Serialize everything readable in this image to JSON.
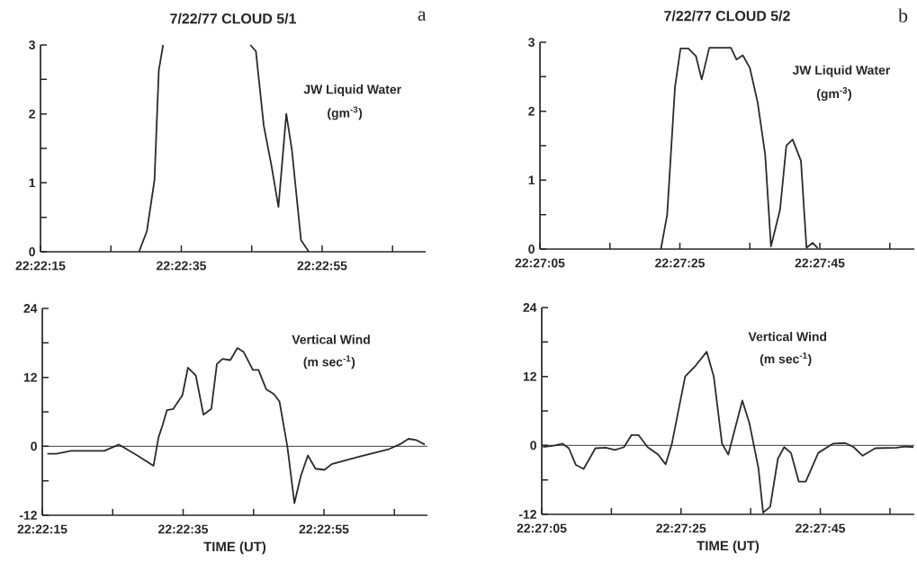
{
  "chart_data": [
    {
      "type": "line",
      "title": "7/22/77 CLOUD 5/1",
      "annotations": [
        "JW Liquid Water",
        "(gm$^{-3}$)",
        "a"
      ],
      "x": [
        22.37472,
        22.37503,
        22.37533,
        22.3755,
        22.37567,
        22.37722,
        22.37911,
        22.37933,
        22.37964,
        22.37994,
        22.38022,
        22.38053,
        22.38075,
        22.38111,
        22.38142
      ],
      "series": [
        {
          "color": "#2b2b2b",
          "values": [
            0,
            0.3,
            1.04,
            2.63,
            3,
            null,
            3,
            2.91,
            1.83,
            1.26,
            0.65,
            2.0,
            1.48,
            0.17,
            0
          ]
        }
      ],
      "xlim": [
        22.370833,
        22.386028
      ],
      "xticks": [
        {
          "value": 22.370833,
          "label": "22:22:15"
        },
        {
          "value": 22.373611,
          "label": null
        },
        {
          "value": 22.376389,
          "label": "22:22:35"
        },
        {
          "value": 22.379167,
          "label": null
        },
        {
          "value": 22.381944,
          "label": "22:22:55"
        },
        {
          "value": 22.384722,
          "label": null
        }
      ],
      "ylim": [
        0,
        3
      ],
      "yticks": [
        0,
        {
          "value": 0.5,
          "label": null
        },
        1,
        {
          "value": 1.5,
          "label": null
        },
        2,
        {
          "value": 2.5,
          "label": null
        },
        3
      ]
    },
    {
      "type": "line",
      "title": "7/22/77 CLOUD 5/2",
      "annotations": [
        "JW Liquid Water",
        "(gm$^{-3}$)",
        "b"
      ],
      "x": [
        22.45619,
        22.45644,
        22.45675,
        22.45697,
        22.45728,
        22.45758,
        22.45781,
        22.45811,
        22.45897,
        22.45919,
        22.45944,
        22.45972,
        22.46003,
        22.46033,
        22.46056,
        22.46092,
        22.46117,
        22.46142,
        22.46175,
        22.46197,
        22.46222,
        22.46242
      ],
      "series": [
        {
          "color": "#2b2b2b",
          "values": [
            0,
            0.5,
            2.35,
            2.91,
            2.91,
            2.8,
            2.46,
            2.92,
            2.92,
            2.75,
            2.81,
            2.63,
            2.13,
            1.37,
            0.04,
            0.57,
            1.5,
            1.59,
            1.28,
            0.02,
            0.09,
            0.01
          ]
        }
      ],
      "xlim": [
        22.451389,
        22.46625
      ],
      "xticks": [
        {
          "value": 22.451389,
          "label": "22:27:05"
        },
        {
          "value": 22.454167,
          "label": null
        },
        {
          "value": 22.456944,
          "label": "22:27:25"
        },
        {
          "value": 22.459722,
          "label": null
        },
        {
          "value": 22.4625,
          "label": "22:27:45"
        },
        {
          "value": 22.465278,
          "label": null
        }
      ],
      "ylim": [
        0,
        3
      ],
      "yticks": [
        0,
        {
          "value": 0.5,
          "label": null
        },
        1,
        {
          "value": 1.5,
          "label": null
        },
        2,
        {
          "value": 2.5,
          "label": null
        },
        3
      ]
    },
    {
      "type": "line",
      "xlabel": "TIME (UT)",
      "annotations": [
        "Vertical Wind",
        "(m sec$^{-1}$)"
      ],
      "x": [
        22.37103,
        22.37139,
        22.37197,
        22.37328,
        22.37386,
        22.37458,
        22.37522,
        22.37542,
        22.37558,
        22.37575,
        22.376,
        22.37636,
        22.37658,
        22.37689,
        22.37719,
        22.3775,
        22.37772,
        22.37794,
        22.37825,
        22.37853,
        22.37878,
        22.37914,
        22.37936,
        22.37967,
        22.37997,
        22.38019,
        22.3805,
        22.38078,
        22.38103,
        22.38131,
        22.38161,
        22.38197,
        22.38225,
        22.38333,
        22.3845,
        22.38492,
        22.38528,
        22.38558,
        22.38592
      ],
      "series": [
        {
          "color": "#2b2b2b",
          "values": [
            -1.3,
            -1.3,
            -0.8,
            -0.8,
            0.3,
            -1.6,
            -3.4,
            1.6,
            3.7,
            6.3,
            6.5,
            8.9,
            13.7,
            12.3,
            5.5,
            6.5,
            14.3,
            15.2,
            15.0,
            17.1,
            16.4,
            13.3,
            13.3,
            9.9,
            9.1,
            7.8,
            0,
            -9.9,
            -5.2,
            -1.6,
            -3.9,
            -4.1,
            -3.1,
            -1.8,
            -0.5,
            0.3,
            1.3,
            1.1,
            0.3
          ]
        }
      ],
      "xlim": [
        22.370833,
        22.386028
      ],
      "xticks": [
        {
          "value": 22.370833,
          "label": "22:22:15"
        },
        {
          "value": 22.373611,
          "label": null
        },
        {
          "value": 22.376389,
          "label": "22:22:35"
        },
        {
          "value": 22.379167,
          "label": null
        },
        {
          "value": 22.381944,
          "label": "22:22:55"
        },
        {
          "value": 22.384722,
          "label": null
        }
      ],
      "ylim": [
        -12,
        24
      ],
      "yticks": [
        -12,
        {
          "value": -6,
          "label": null
        },
        0,
        {
          "value": 6,
          "label": null
        },
        12,
        {
          "value": 18,
          "label": null
        },
        24
      ],
      "ref_lines": [
        {
          "axis": "y",
          "value": 0
        }
      ]
    },
    {
      "type": "line",
      "xlabel": "TIME (UT)",
      "annotations": [
        "Vertical Wind",
        "(m sec$^{-1}$)"
      ],
      "x": [
        22.45144,
        22.45192,
        22.45222,
        22.45247,
        22.45275,
        22.45306,
        22.45353,
        22.45394,
        22.45431,
        22.45467,
        22.45497,
        22.45525,
        22.45561,
        22.45603,
        22.45633,
        22.45658,
        22.45711,
        22.45753,
        22.45797,
        22.45825,
        22.45858,
        22.45883,
        22.45939,
        22.45967,
        22.46003,
        22.46022,
        22.4605,
        22.46081,
        22.46106,
        22.46133,
        22.46164,
        22.46192,
        22.46242,
        22.463,
        22.4635,
        22.46383,
        22.46419,
        22.46469,
        22.46553,
        22.46589,
        22.46622
      ],
      "series": [
        {
          "color": "#2b2b2b",
          "values": [
            -0.3,
            0,
            0.3,
            -0.5,
            -3.4,
            -4.1,
            -0.5,
            -0.4,
            -0.8,
            -0.3,
            1.8,
            1.8,
            -0.3,
            -1.6,
            -3.3,
            0.3,
            12.0,
            13.9,
            16.3,
            12.0,
            0.3,
            -1.6,
            7.8,
            3.9,
            -3.9,
            -11.7,
            -10.7,
            -2.3,
            -0.3,
            -1.3,
            -6.3,
            -6.3,
            -1.3,
            0.3,
            0.4,
            -0.3,
            -1.8,
            -0.5,
            -0.4,
            -0.2,
            -0.3
          ]
        }
      ],
      "xlim": [
        22.451389,
        22.46625
      ],
      "xticks": [
        {
          "value": 22.451389,
          "label": "22:27:05"
        },
        {
          "value": 22.454167,
          "label": null
        },
        {
          "value": 22.456944,
          "label": "22:27:25"
        },
        {
          "value": 22.459722,
          "label": null
        },
        {
          "value": 22.4625,
          "label": "22:27:45"
        },
        {
          "value": 22.465278,
          "label": null
        }
      ],
      "ylim": [
        -12,
        24
      ],
      "yticks": [
        -12,
        {
          "value": -6,
          "label": null
        },
        0,
        {
          "value": 6,
          "label": null
        },
        12,
        {
          "value": 18,
          "label": null
        },
        24
      ],
      "ref_lines": [
        {
          "axis": "y",
          "value": 0
        }
      ]
    }
  ]
}
